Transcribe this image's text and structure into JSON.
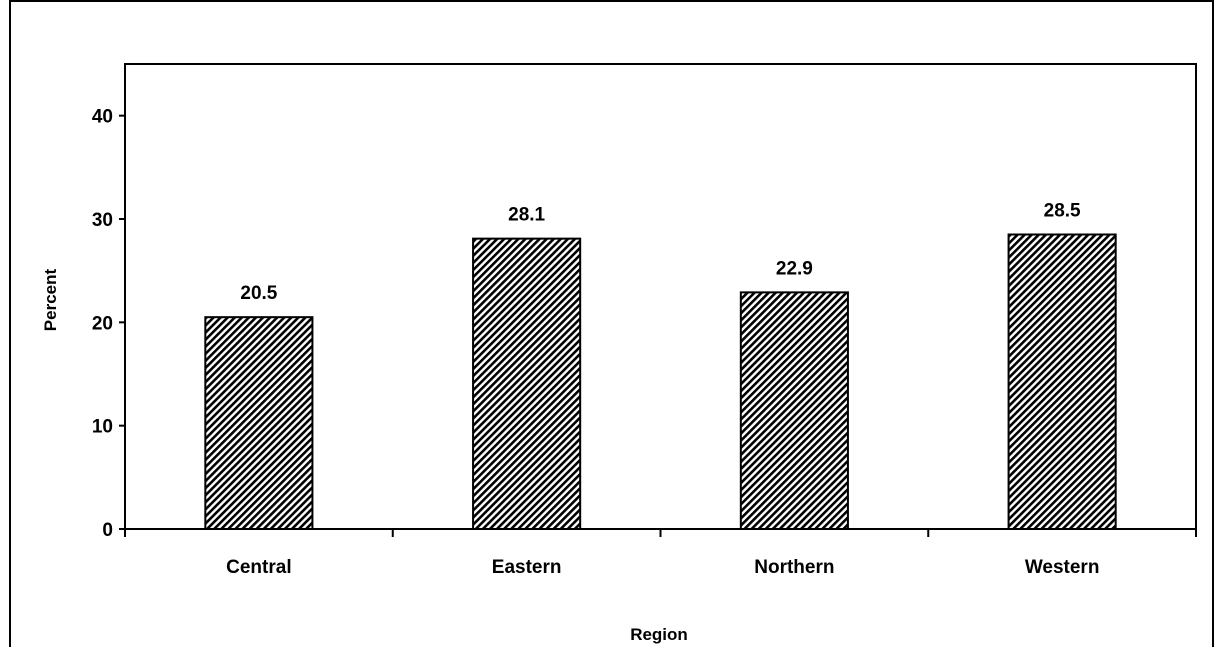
{
  "chart_data": {
    "type": "bar",
    "title": "",
    "xlabel": "Region",
    "ylabel": "Percent",
    "categories": [
      "Central",
      "Eastern",
      "Northern",
      "Western"
    ],
    "values": [
      20.5,
      28.1,
      22.9,
      28.5
    ],
    "data_labels": [
      "20.5",
      "28.1",
      "22.9",
      "28.5"
    ],
    "ylim": [
      0,
      45
    ],
    "yticks": [
      0,
      10,
      20,
      30,
      40
    ],
    "ytick_labels": [
      "0",
      "10",
      "20",
      "30",
      "40"
    ],
    "grid": false,
    "legend": "none",
    "bar_fill": "diagonal-hatch",
    "colors": {
      "bar_stroke": "#000000",
      "hatch": "#000000",
      "background": "#ffffff"
    }
  }
}
